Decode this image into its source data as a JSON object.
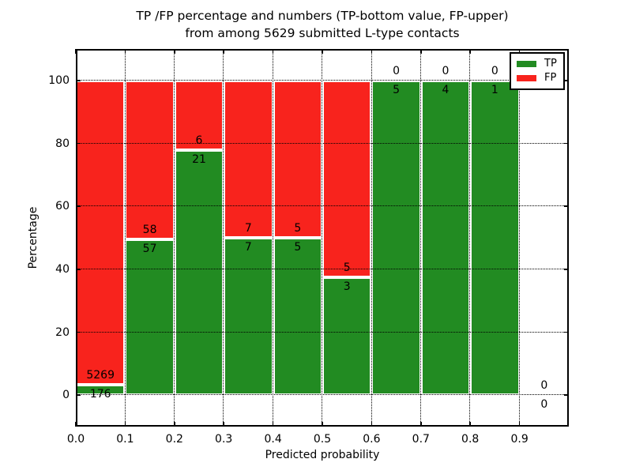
{
  "figure": {
    "title_line1": "TP /FP percentage and numbers (TP-bottom value, FP-upper)",
    "title_line2": "from among 5629 submitted L-type contacts"
  },
  "axes": {
    "xlabel": "Predicted probability",
    "ylabel": "Percentage",
    "xlim": [
      0.0,
      1.0
    ],
    "ylim": [
      -10,
      110
    ],
    "xtick_labels": [
      "0.0",
      "0.1",
      "0.2",
      "0.3",
      "0.4",
      "0.5",
      "0.6",
      "0.7",
      "0.8",
      "0.9"
    ],
    "ytick_values": [
      0,
      20,
      40,
      60,
      80,
      100
    ],
    "grid_style": "dotted"
  },
  "legend": {
    "position": "upper right",
    "items": [
      {
        "label": "TP",
        "color": "#228b22"
      },
      {
        "label": "FP",
        "color": "#f8231d"
      }
    ]
  },
  "chart_data": {
    "type": "bar",
    "stacked": true,
    "normalized_to": 100,
    "total_submitted": 5629,
    "bin_width": 0.1,
    "tp_color": "#228b22",
    "fp_color": "#f8231d",
    "bins": [
      {
        "x0": 0.0,
        "x1": 0.1,
        "tp": 176,
        "fp": 5269,
        "tp_pct": 3.2
      },
      {
        "x0": 0.1,
        "x1": 0.2,
        "tp": 57,
        "fp": 58,
        "tp_pct": 49.6
      },
      {
        "x0": 0.2,
        "x1": 0.3,
        "tp": 21,
        "fp": 6,
        "tp_pct": 77.8
      },
      {
        "x0": 0.3,
        "x1": 0.4,
        "tp": 7,
        "fp": 7,
        "tp_pct": 50.0
      },
      {
        "x0": 0.4,
        "x1": 0.5,
        "tp": 5,
        "fp": 5,
        "tp_pct": 50.0
      },
      {
        "x0": 0.5,
        "x1": 0.6,
        "tp": 3,
        "fp": 5,
        "tp_pct": 37.5
      },
      {
        "x0": 0.6,
        "x1": 0.7,
        "tp": 5,
        "fp": 0,
        "tp_pct": 100.0
      },
      {
        "x0": 0.7,
        "x1": 0.8,
        "tp": 4,
        "fp": 0,
        "tp_pct": 100.0
      },
      {
        "x0": 0.8,
        "x1": 0.9,
        "tp": 1,
        "fp": 0,
        "tp_pct": 100.0
      },
      {
        "x0": 0.9,
        "x1": 1.0,
        "tp": 0,
        "fp": 0,
        "tp_pct": null
      }
    ]
  }
}
